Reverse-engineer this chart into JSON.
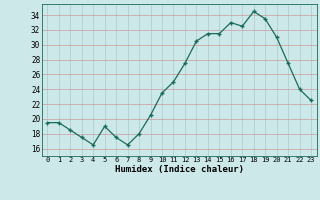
{
  "x": [
    0,
    1,
    2,
    3,
    4,
    5,
    6,
    7,
    8,
    9,
    10,
    11,
    12,
    13,
    14,
    15,
    16,
    17,
    18,
    19,
    20,
    21,
    22,
    23
  ],
  "y": [
    19.5,
    19.5,
    18.5,
    17.5,
    16.5,
    19.0,
    17.5,
    16.5,
    18.0,
    20.5,
    23.5,
    25.0,
    27.5,
    30.5,
    31.5,
    31.5,
    33.0,
    32.5,
    34.5,
    33.5,
    31.0,
    27.5,
    24.0,
    22.5
  ],
  "xlim": [
    -0.5,
    23.5
  ],
  "ylim": [
    15.0,
    35.5
  ],
  "yticks": [
    16,
    18,
    20,
    22,
    24,
    26,
    28,
    30,
    32,
    34
  ],
  "xticks": [
    0,
    1,
    2,
    3,
    4,
    5,
    6,
    7,
    8,
    9,
    10,
    11,
    12,
    13,
    14,
    15,
    16,
    17,
    18,
    19,
    20,
    21,
    22,
    23
  ],
  "xlabel": "Humidex (Indice chaleur)",
  "line_color": "#1a6b5a",
  "marker": "+",
  "marker_size": 3.5,
  "bg_color": "#cce8e8",
  "grid_color": "#aacccc",
  "grid_color_major": "#cc9999"
}
